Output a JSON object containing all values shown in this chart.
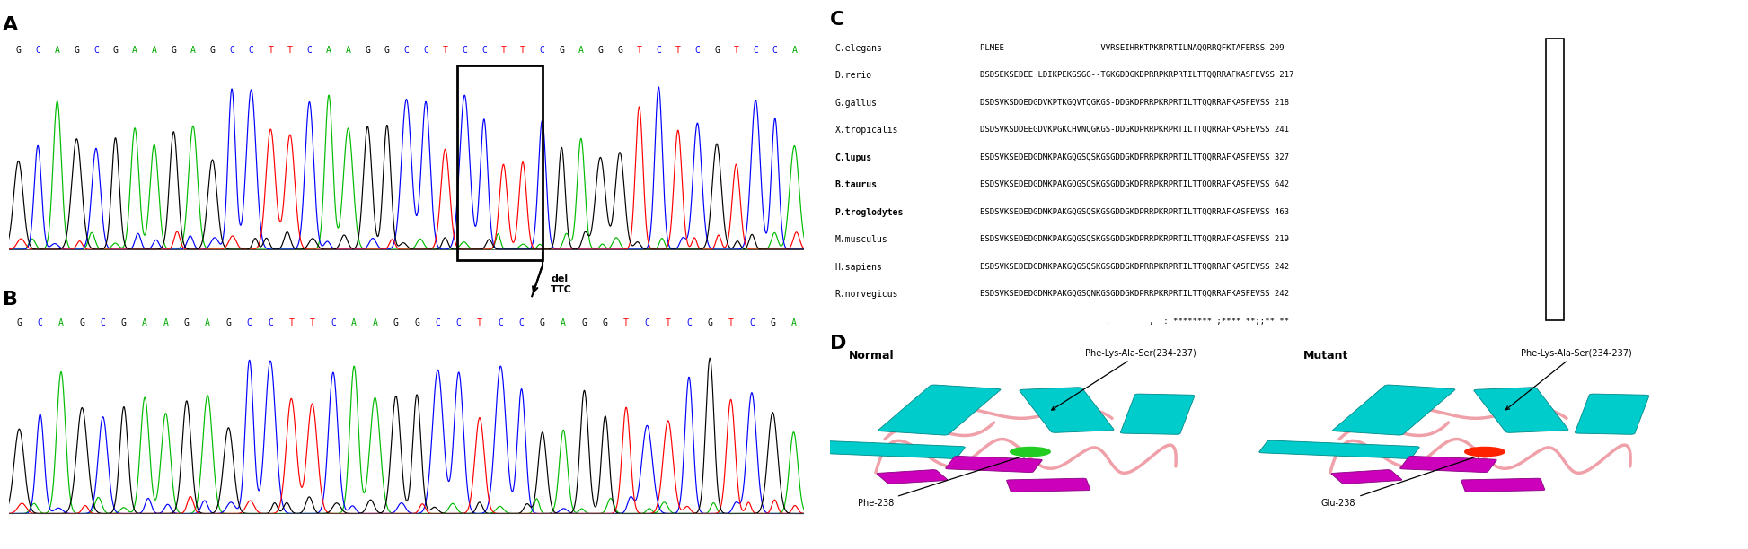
{
  "seq_A": [
    "G",
    "C",
    "A",
    "G",
    "C",
    "G",
    "A",
    "A",
    "G",
    "A",
    "G",
    "C",
    "C",
    "T",
    "T",
    "C",
    "A",
    "A",
    "G",
    "G",
    "C",
    "C",
    "T",
    "C",
    "C",
    "T",
    "T",
    "C",
    "G",
    "A",
    "G",
    "G",
    "T",
    "C",
    "T",
    "C",
    "G",
    "T",
    "C",
    "C",
    "A"
  ],
  "seq_A_colors": [
    "black",
    "blue",
    "green",
    "black",
    "blue",
    "black",
    "green",
    "green",
    "black",
    "green",
    "black",
    "blue",
    "blue",
    "red",
    "red",
    "blue",
    "green",
    "green",
    "black",
    "black",
    "blue",
    "blue",
    "red",
    "blue",
    "blue",
    "red",
    "red",
    "blue",
    "black",
    "green",
    "black",
    "black",
    "red",
    "blue",
    "red",
    "blue",
    "black",
    "red",
    "blue",
    "blue",
    "green"
  ],
  "seq_B": [
    "G",
    "C",
    "A",
    "G",
    "C",
    "G",
    "A",
    "A",
    "G",
    "A",
    "G",
    "C",
    "C",
    "T",
    "T",
    "C",
    "A",
    "A",
    "G",
    "G",
    "C",
    "C",
    "T",
    "C",
    "C",
    "G",
    "A",
    "G",
    "G",
    "T",
    "C",
    "T",
    "C",
    "G",
    "T",
    "C",
    "G",
    "A"
  ],
  "seq_B_colors": [
    "black",
    "blue",
    "green",
    "black",
    "blue",
    "black",
    "green",
    "green",
    "black",
    "green",
    "black",
    "blue",
    "blue",
    "red",
    "red",
    "blue",
    "green",
    "green",
    "black",
    "black",
    "blue",
    "blue",
    "red",
    "blue",
    "blue",
    "black",
    "green",
    "black",
    "black",
    "red",
    "blue",
    "red",
    "blue",
    "black",
    "red",
    "blue",
    "black",
    "green"
  ],
  "alignment_species": [
    "C.elegans",
    "D.rerio",
    "G.gallus",
    "X.tropicalis",
    "C.lupus",
    "B.taurus",
    "P.troglodytes",
    "M.musculus",
    "H.sapiens",
    "R.norvegicus"
  ],
  "alignment_seqs": [
    "PLMEE--------------------VVRSEIHRKTPKRPRTILNAQQRRQFKTAFERSS 209",
    "DSDSEKSEDEE LDIKPEKGSGG--TGKGDDGKDPRRPKRPRTILTTQQRRAFKASFEVSS 217",
    "DSDSVKSDDEDGDVKPTKGQVTQGKGS-DDGKDPRRPKRPRTILTTQQRRAFKASFEVSS 218",
    "DSDSVKSDDEEGDVKPGKCHVNQGKGS-DDGKDPRRPKRPRTILTTQQRRAFKASFEVSS 241",
    "ESDSVKSEDEDGDMKPAKGQGSQSKGSGDDGKDPRRPKRPRTILTTQQRRAFKASFEVSS 327",
    "ESDSVKSEDEDGDMKPAKGQGSQSKGSGDDGKDPRRPKRPRTILTTQQRRAFKASFEVSS 642",
    "ESDSVKSEDEDGDMKPAKGQGSQSKGSGDDGKDPRRPKRPRTILTTQQRRAFKASFEVSS 463",
    "ESDSVKSEDEDGDMKPAKGQGSQSKGSGDDGKDPRRPKRPRTILTTQQRRAFKASFEVSS 219",
    "ESDSVKSEDEDGDMKPAKGQGSQSKGSGDDGKDPRRPKRPRTILTTQQRRAFKASFEVSS 242",
    "ESDSVKSEDEDGDMKPAKGQGSQNKGSGDDGKDPRRPKRPRTILTTQQRRAFKASFEVSS 242"
  ],
  "alignment_conservation": "                          .        ,  : ******** ;**** **;;** **",
  "bold_species": [
    "C.lupus",
    "B.taurus",
    "P.troglodytes"
  ],
  "normal_label": "Normal",
  "mutant_label": "Mutant",
  "annotation_normal_1": "Phe-Lys-Ala-Ser(234-237)",
  "annotation_normal_2": "Phe-238",
  "annotation_mutant_1": "Phe-Lys-Ala-Ser(234-237)",
  "annotation_mutant_2": "Glu-238",
  "color_A": "#00bb00",
  "color_C": "#0000ff",
  "color_G": "#000000",
  "color_T": "#ff0000"
}
